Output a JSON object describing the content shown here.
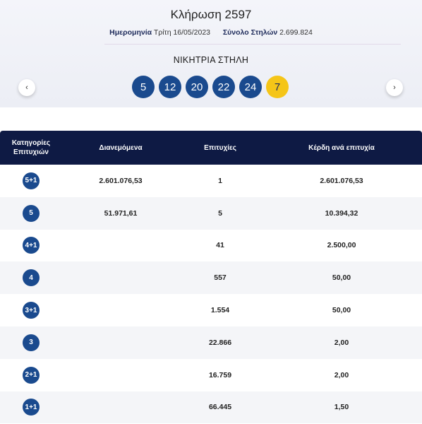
{
  "draw": {
    "title": "Κλήρωση 2597",
    "date_label": "Ημερομηνία",
    "date_value": "Τρίτη 16/05/2023",
    "columns_label": "Σύνολο Στηλών",
    "columns_value": "2.699.824",
    "winning_label": "ΝΙΚΗΤΡΙΑ ΣΤΗΛΗ",
    "numbers": [
      "5",
      "12",
      "20",
      "22",
      "24"
    ],
    "joker": "7",
    "prev_glyph": "‹",
    "next_glyph": "›"
  },
  "table": {
    "headers": {
      "category_line1": "Κατηγορίες",
      "category_line2": "Επιτυχιών",
      "distributed": "Διανεμόμενα",
      "winners": "Επιτυχίες",
      "prize": "Κέρδη ανά επιτυχία"
    },
    "rows": [
      {
        "category": "5+1",
        "distributed": "2.601.076,53",
        "winners": "1",
        "prize": "2.601.076,53"
      },
      {
        "category": "5",
        "distributed": "51.971,61",
        "winners": "5",
        "prize": "10.394,32"
      },
      {
        "category": "4+1",
        "distributed": "",
        "winners": "41",
        "prize": "2.500,00"
      },
      {
        "category": "4",
        "distributed": "",
        "winners": "557",
        "prize": "50,00"
      },
      {
        "category": "3+1",
        "distributed": "",
        "winners": "1.554",
        "prize": "50,00"
      },
      {
        "category": "3",
        "distributed": "",
        "winners": "22.866",
        "prize": "2,00"
      },
      {
        "category": "2+1",
        "distributed": "",
        "winners": "16.759",
        "prize": "2,00"
      },
      {
        "category": "1+1",
        "distributed": "",
        "winners": "66.445",
        "prize": "1,50"
      }
    ]
  },
  "colors": {
    "ball": "#1a4a8e",
    "joker_ball": "#f5c518",
    "table_header": "#0e1a44"
  }
}
